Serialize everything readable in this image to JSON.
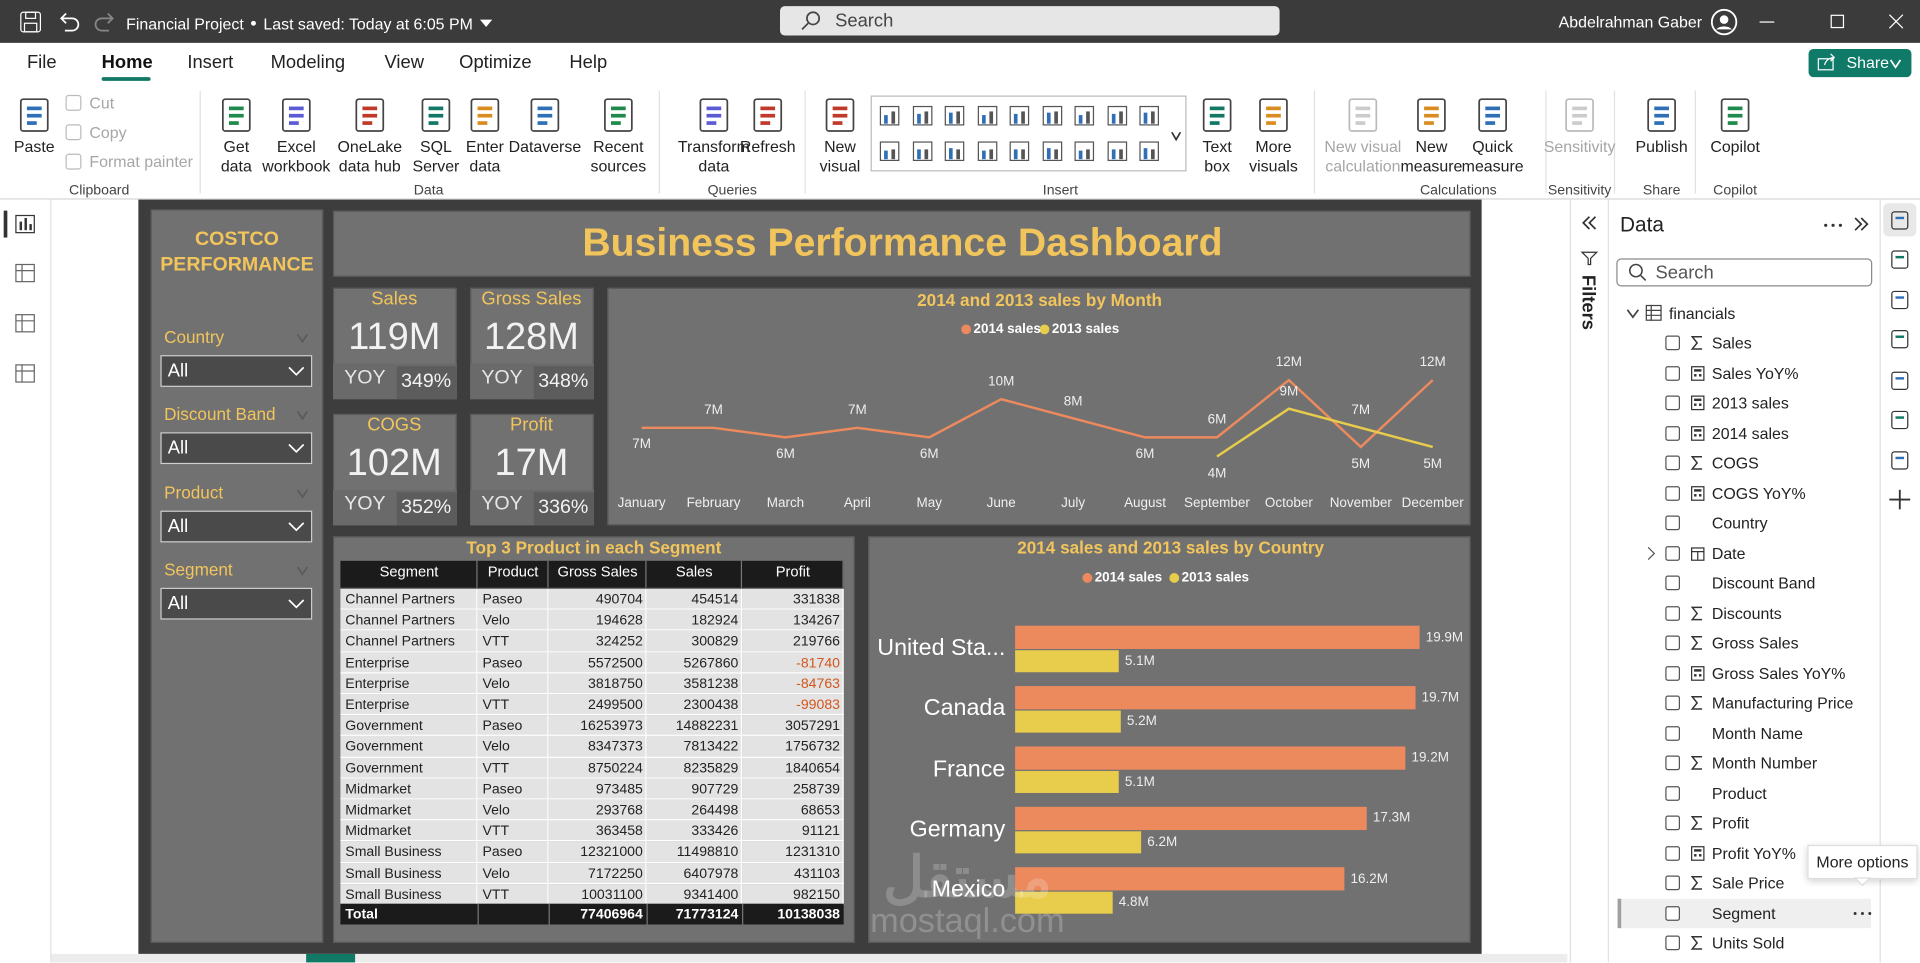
{
  "titlebar": {
    "file_name": "Financial Project",
    "saved": "Last saved: Today at 6:05 PM",
    "search": "Search",
    "user": "Abdelrahman Gaber"
  },
  "menu": [
    "File",
    "Home",
    "Insert",
    "Modeling",
    "View",
    "Optimize",
    "Help"
  ],
  "share": "Share",
  "ribbon": [
    {
      "group": "Clipboard",
      "items": [
        "Paste",
        {
          "label": "Cut",
          "disabled": true
        },
        {
          "label": "Copy",
          "disabled": true
        },
        {
          "label": "Format painter",
          "disabled": true
        }
      ]
    },
    {
      "group": "Data",
      "items": [
        "Get data",
        "Excel workbook",
        "OneLake data hub",
        "SQL Server",
        "Enter data",
        "Dataverse",
        "Recent sources"
      ]
    },
    {
      "group": "Queries",
      "items": [
        "Transform data",
        "Refresh"
      ]
    },
    {
      "group": "Insert",
      "items": [
        "New visual",
        "Text box",
        "More visuals"
      ]
    },
    {
      "group": "Calculations",
      "items": [
        {
          "label": "New visual calculation",
          "disabled": true
        },
        "New measure",
        "Quick measure"
      ]
    },
    {
      "group": "Sensitivity",
      "items": [
        {
          "label": "Sensitivity",
          "disabled": true
        }
      ]
    },
    {
      "group": "Share",
      "items": [
        "Publish"
      ]
    },
    {
      "group": "Copilot",
      "items": [
        "Copilot"
      ]
    }
  ],
  "dashboard": {
    "side_title": "COSTCO PERFORMANCE",
    "slicers": [
      {
        "label": "Country",
        "value": "All"
      },
      {
        "label": "Discount Band",
        "value": "All"
      },
      {
        "label": "Product",
        "value": "All"
      },
      {
        "label": "Segment",
        "value": "All"
      }
    ],
    "title": "Business Performance Dashboard",
    "kpis": [
      {
        "title": "Sales",
        "value": "119M",
        "yoy_label": "YOY",
        "yoy": "349%"
      },
      {
        "title": "Gross Sales",
        "value": "128M",
        "yoy_label": "YOY",
        "yoy": "348%"
      },
      {
        "title": "COGS",
        "value": "102M",
        "yoy_label": "YOY",
        "yoy": "352%"
      },
      {
        "title": "Profit",
        "value": "17M",
        "yoy_label": "YOY",
        "yoy": "336%"
      }
    ],
    "line_chart": {
      "type": "line",
      "title": "2014 and 2013 sales by Month",
      "categories": [
        "January",
        "February",
        "March",
        "April",
        "May",
        "June",
        "July",
        "August",
        "September",
        "October",
        "November",
        "December"
      ],
      "series": [
        {
          "name": "2014 sales",
          "color": "#ec8a5e",
          "values": [
            7,
            7,
            6,
            7,
            6,
            10,
            8,
            6,
            6,
            12,
            5,
            12
          ],
          "value_labels": [
            "7M",
            "7M",
            "6M",
            "7M",
            "6M",
            "10M",
            "8M",
            "6M",
            "6M",
            "12M",
            "5M",
            "12M"
          ]
        },
        {
          "name": "2013 sales",
          "color": "#e8cc4c",
          "values": [
            null,
            null,
            null,
            null,
            null,
            null,
            null,
            null,
            4,
            9,
            7,
            5
          ],
          "value_labels": [
            null,
            null,
            null,
            null,
            null,
            null,
            null,
            null,
            "4M",
            "9M",
            "7M",
            "5M"
          ]
        }
      ]
    },
    "table": {
      "title": "Top 3 Product in each Segment",
      "columns": [
        "Segment",
        "Product",
        "Gross Sales",
        "Sales",
        "Profit"
      ],
      "rows": [
        [
          "Channel Partners",
          "Paseo",
          490704,
          454514,
          331838
        ],
        [
          "Channel Partners",
          "Velo",
          194628,
          182924,
          134267
        ],
        [
          "Channel Partners",
          "VTT",
          324252,
          300829,
          219766
        ],
        [
          "Enterprise",
          "Paseo",
          5572500,
          5267860,
          -81740
        ],
        [
          "Enterprise",
          "Velo",
          3818750,
          3581238,
          -84763
        ],
        [
          "Enterprise",
          "VTT",
          2499500,
          2300438,
          -99083
        ],
        [
          "Government",
          "Paseo",
          16253973,
          14882231,
          3057291
        ],
        [
          "Government",
          "Velo",
          8347373,
          7813422,
          1756732
        ],
        [
          "Government",
          "VTT",
          8750224,
          8235829,
          1840654
        ],
        [
          "Midmarket",
          "Paseo",
          973485,
          907729,
          258739
        ],
        [
          "Midmarket",
          "Velo",
          293768,
          264498,
          68653
        ],
        [
          "Midmarket",
          "VTT",
          363458,
          333426,
          91121
        ],
        [
          "Small Business",
          "Paseo",
          12321000,
          11498810,
          1231310
        ],
        [
          "Small Business",
          "Velo",
          7172250,
          6407978,
          431103
        ],
        [
          "Small Business",
          "VTT",
          10031100,
          9341400,
          982150
        ]
      ],
      "total": {
        "label": "Total",
        "values": [
          77406964,
          71773124,
          10138038
        ]
      }
    },
    "bar_chart": {
      "type": "bar",
      "title": "2014 sales and 2013 sales by Country",
      "categories": [
        "United Sta...",
        "Canada",
        "France",
        "Germany",
        "Mexico"
      ],
      "series": [
        {
          "name": "2014 sales",
          "color": "#ec8a5e",
          "values": [
            19.9,
            19.7,
            19.2,
            17.3,
            16.2
          ],
          "value_labels": [
            "19.9M",
            "19.7M",
            "19.2M",
            "17.3M",
            "16.2M"
          ]
        },
        {
          "name": "2013 sales",
          "color": "#e8cc4c",
          "values": [
            5.1,
            5.2,
            5.1,
            6.2,
            4.8
          ],
          "value_labels": [
            "5.1M",
            "5.2M",
            "5.1M",
            "6.2M",
            "4.8M"
          ]
        }
      ]
    }
  },
  "watermark": {
    "arabic": "مستقل",
    "latin": "mostaql.com"
  },
  "filters": "Filters",
  "data_pane": {
    "title": "Data",
    "search": "Search",
    "table": "financials",
    "fields": [
      {
        "name": "Sales",
        "kind": "sum"
      },
      {
        "name": "Sales YoY%",
        "kind": "measure"
      },
      {
        "name": "2013 sales",
        "kind": "measure"
      },
      {
        "name": "2014 sales",
        "kind": "measure"
      },
      {
        "name": "COGS",
        "kind": "sum"
      },
      {
        "name": "COGS YoY%",
        "kind": "measure"
      },
      {
        "name": "Country",
        "kind": "field"
      },
      {
        "name": "Date",
        "kind": "date"
      },
      {
        "name": "Discount Band",
        "kind": "field"
      },
      {
        "name": "Discounts",
        "kind": "sum"
      },
      {
        "name": "Gross Sales",
        "kind": "sum"
      },
      {
        "name": "Gross Sales YoY%",
        "kind": "measure"
      },
      {
        "name": "Manufacturing Price",
        "kind": "sum"
      },
      {
        "name": "Month Name",
        "kind": "field"
      },
      {
        "name": "Month Number",
        "kind": "sum"
      },
      {
        "name": "Product",
        "kind": "field"
      },
      {
        "name": "Profit",
        "kind": "sum"
      },
      {
        "name": "Profit YoY%",
        "kind": "measure"
      },
      {
        "name": "Sale Price",
        "kind": "sum"
      },
      {
        "name": "Segment",
        "kind": "field"
      },
      {
        "name": "Units Sold",
        "kind": "sum"
      }
    ]
  },
  "tooltip": "More options"
}
